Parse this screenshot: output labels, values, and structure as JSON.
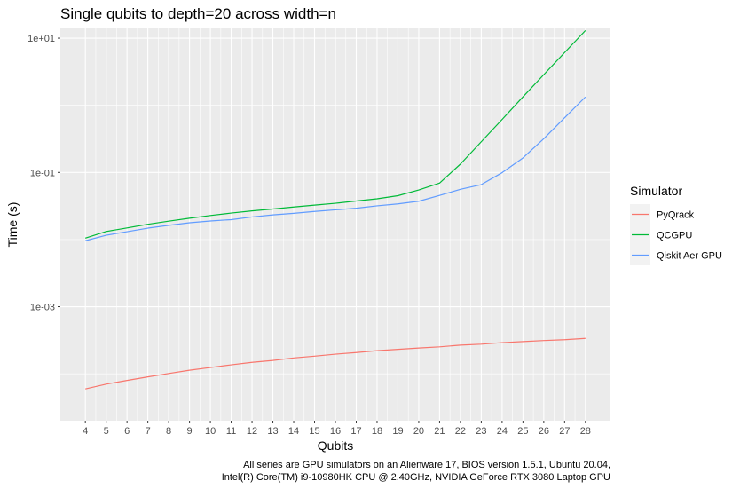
{
  "chart_data": {
    "type": "line",
    "title": "Single qubits to depth=20 across width=n",
    "xlabel": "Qubits",
    "ylabel": "Time (s)",
    "x": [
      4,
      5,
      6,
      7,
      8,
      9,
      10,
      11,
      12,
      13,
      14,
      15,
      16,
      17,
      18,
      19,
      20,
      21,
      22,
      23,
      24,
      25,
      26,
      27,
      28
    ],
    "y_scale": "log10",
    "ylim": [
      2e-05,
      14
    ],
    "y_ticks": [
      0.001,
      0.1,
      10
    ],
    "y_tick_labels": [
      "1e-03",
      "1e-01",
      "1e+01"
    ],
    "grid": true,
    "legend": {
      "title": "Simulator",
      "placement": "right"
    },
    "caption": [
      "All series are GPU simulators on an Alienware 17, BIOS version 1.5.1, Ubuntu 20.04,",
      "Intel(R) Core(TM) i9-10980HK CPU @ 2.40GHz, NVIDIA GeForce RTX 3080 Laptop GPU"
    ],
    "series": [
      {
        "name": "PyQrack",
        "color": "#F8766D",
        "values": [
          5.95e-05,
          7.01e-05,
          7.97e-05,
          8.99e-05,
          0.000101,
          0.000113,
          0.000124,
          0.000136,
          0.000148,
          0.000158,
          0.000172,
          0.000183,
          0.000196,
          0.000207,
          0.000221,
          0.000231,
          0.000242,
          0.000252,
          0.000267,
          0.000276,
          0.000291,
          0.000302,
          0.000313,
          0.000322,
          0.000337
        ]
      },
      {
        "name": "QCGPU",
        "color": "#00BA38",
        "values": [
          0.0105,
          0.0132,
          0.0149,
          0.0169,
          0.0188,
          0.0208,
          0.0228,
          0.0248,
          0.0267,
          0.0285,
          0.0305,
          0.0326,
          0.0347,
          0.0375,
          0.0405,
          0.045,
          0.0548,
          0.0694,
          0.1332,
          0.2864,
          0.615,
          1.334,
          2.863,
          6.109,
          13.03
        ]
      },
      {
        "name": "Qiskit Aer GPU",
        "color": "#619CFF",
        "values": [
          0.0096,
          0.0116,
          0.0131,
          0.0148,
          0.0163,
          0.0178,
          0.0189,
          0.0198,
          0.0217,
          0.0233,
          0.0246,
          0.0262,
          0.0277,
          0.0293,
          0.0318,
          0.034,
          0.0372,
          0.0455,
          0.056,
          0.0658,
          0.0992,
          0.1643,
          0.3178,
          0.6525,
          1.332
        ]
      }
    ]
  }
}
